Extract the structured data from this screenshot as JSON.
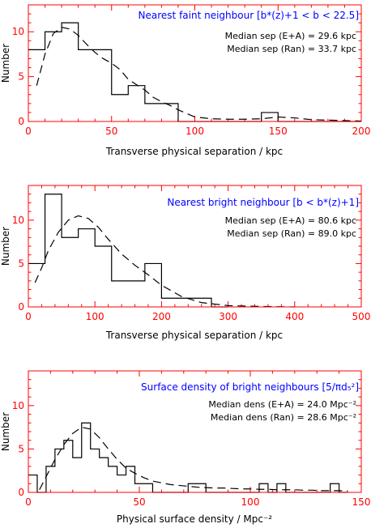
{
  "chart_data": [
    {
      "type": "histogram",
      "title": "Nearest faint neighbour [b*(z)+1 < b < 22.5]",
      "title_color": "#0000ff",
      "annotations": [
        "Median sep (E+A) = 29.6 kpc",
        "Median sep (Ran) = 33.7 kpc"
      ],
      "xlabel": "Transverse physical separation / kpc",
      "ylabel": "Number",
      "xlim": [
        0,
        200
      ],
      "ylim": [
        0,
        13
      ],
      "xticks": [
        0,
        50,
        100,
        150,
        200
      ],
      "yticks": [
        0,
        5,
        10
      ],
      "axis_color": "#ff0000",
      "series": [
        {
          "style": "solid",
          "bin_edges": [
            0,
            10,
            20,
            30,
            40,
            50,
            60,
            70,
            80,
            90,
            100,
            110,
            120,
            130,
            140,
            150,
            160,
            170,
            180,
            190,
            200
          ],
          "counts": [
            8,
            10,
            11,
            8,
            8,
            3,
            4,
            2,
            2,
            0,
            0,
            0,
            0,
            0,
            1,
            0,
            0,
            0,
            0,
            0
          ]
        },
        {
          "style": "dashed",
          "x": [
            5,
            10,
            15,
            20,
            25,
            30,
            35,
            40,
            45,
            50,
            55,
            60,
            65,
            70,
            75,
            80,
            85,
            90,
            95,
            100,
            110,
            120,
            130,
            140,
            150,
            160,
            170,
            180,
            190,
            200
          ],
          "y": [
            4,
            7.5,
            9.8,
            10.5,
            10.3,
            9.6,
            8.6,
            7.7,
            7,
            6.5,
            5.8,
            4.7,
            4.1,
            3.5,
            2.7,
            2.2,
            1.8,
            1.3,
            0.9,
            0.5,
            0.3,
            0.25,
            0.25,
            0.3,
            0.5,
            0.4,
            0.2,
            0.15,
            0.1,
            0.05
          ]
        }
      ]
    },
    {
      "type": "histogram",
      "title": "Nearest bright neighbour [b < b*(z)+1]",
      "title_color": "#0000ff",
      "annotations": [
        "Median sep (E+A) = 80.6 kpc",
        "Median sep (Ran) = 89.0 kpc"
      ],
      "xlabel": "Transverse physical separation / kpc",
      "ylabel": "Number",
      "xlim": [
        0,
        500
      ],
      "ylim": [
        0,
        14
      ],
      "xticks": [
        0,
        100,
        200,
        300,
        400,
        500
      ],
      "yticks": [
        0,
        5,
        10
      ],
      "axis_color": "#ff0000",
      "series": [
        {
          "style": "solid",
          "bin_edges": [
            0,
            25,
            50,
            75,
            100,
            125,
            150,
            175,
            200,
            225,
            250,
            275,
            300
          ],
          "counts": [
            5,
            13,
            8,
            9,
            7,
            3,
            3,
            5,
            1,
            1,
            1,
            0
          ]
        },
        {
          "style": "dashed",
          "x": [
            10,
            20,
            30,
            45,
            60,
            75,
            90,
            105,
            120,
            140,
            160,
            180,
            200,
            230,
            260,
            300,
            350,
            400
          ],
          "y": [
            2.8,
            4.5,
            6.5,
            8.6,
            10,
            10.5,
            10.2,
            9.2,
            7.8,
            6.1,
            4.8,
            3.7,
            2.5,
            1.2,
            0.5,
            0.15,
            0.05,
            0
          ]
        }
      ]
    },
    {
      "type": "histogram",
      "title": "Surface density of bright neighbours [5/πd₅²]",
      "title_color": "#0000ff",
      "annotations": [
        "Median dens (E+A) = 24.0 Mpc⁻²",
        "Median dens (Ran) = 28.6 Mpc⁻²"
      ],
      "xlabel": "Physical surface density / Mpc⁻²",
      "ylabel": "Number",
      "xlim": [
        0,
        150
      ],
      "ylim": [
        0,
        14
      ],
      "xticks": [
        0,
        50,
        100,
        150
      ],
      "yticks": [
        0,
        5,
        10
      ],
      "axis_color": "#ff0000",
      "series": [
        {
          "style": "solid",
          "bin_edges": [
            0,
            4,
            8,
            12,
            16,
            20,
            24,
            28,
            32,
            36,
            40,
            44,
            48,
            52,
            56,
            60,
            64,
            68,
            72,
            76,
            80,
            84,
            88,
            92,
            96,
            100,
            104,
            108,
            112,
            116,
            120,
            124,
            128,
            132,
            136,
            140,
            144
          ],
          "counts": [
            2,
            0,
            3,
            5,
            6,
            4,
            8,
            5,
            4,
            3,
            2,
            3,
            1,
            1,
            0,
            0,
            0,
            0,
            1,
            1,
            0,
            0,
            0,
            0,
            0,
            0,
            1,
            0,
            1,
            0,
            0,
            0,
            0,
            0,
            1,
            0
          ]
        },
        {
          "style": "dashed",
          "x": [
            5,
            8,
            12,
            16,
            20,
            24,
            28,
            32,
            36,
            40,
            44,
            48,
            52,
            56,
            60,
            64,
            68,
            72,
            76,
            80,
            84,
            88,
            92,
            96,
            100,
            104,
            108,
            112,
            116,
            120,
            124,
            128,
            132,
            136,
            140,
            144
          ],
          "y": [
            0.3,
            1.8,
            3.8,
            5.5,
            6.8,
            7.5,
            7.3,
            6.3,
            5,
            3.8,
            2.8,
            2.2,
            1.7,
            1.3,
            1.1,
            0.9,
            0.8,
            0.7,
            0.6,
            0.55,
            0.5,
            0.5,
            0.45,
            0.4,
            0.4,
            0.35,
            0.35,
            0.3,
            0.3,
            0.3,
            0.25,
            0.25,
            0.2,
            0.2,
            0.2,
            0.15
          ]
        }
      ]
    }
  ]
}
